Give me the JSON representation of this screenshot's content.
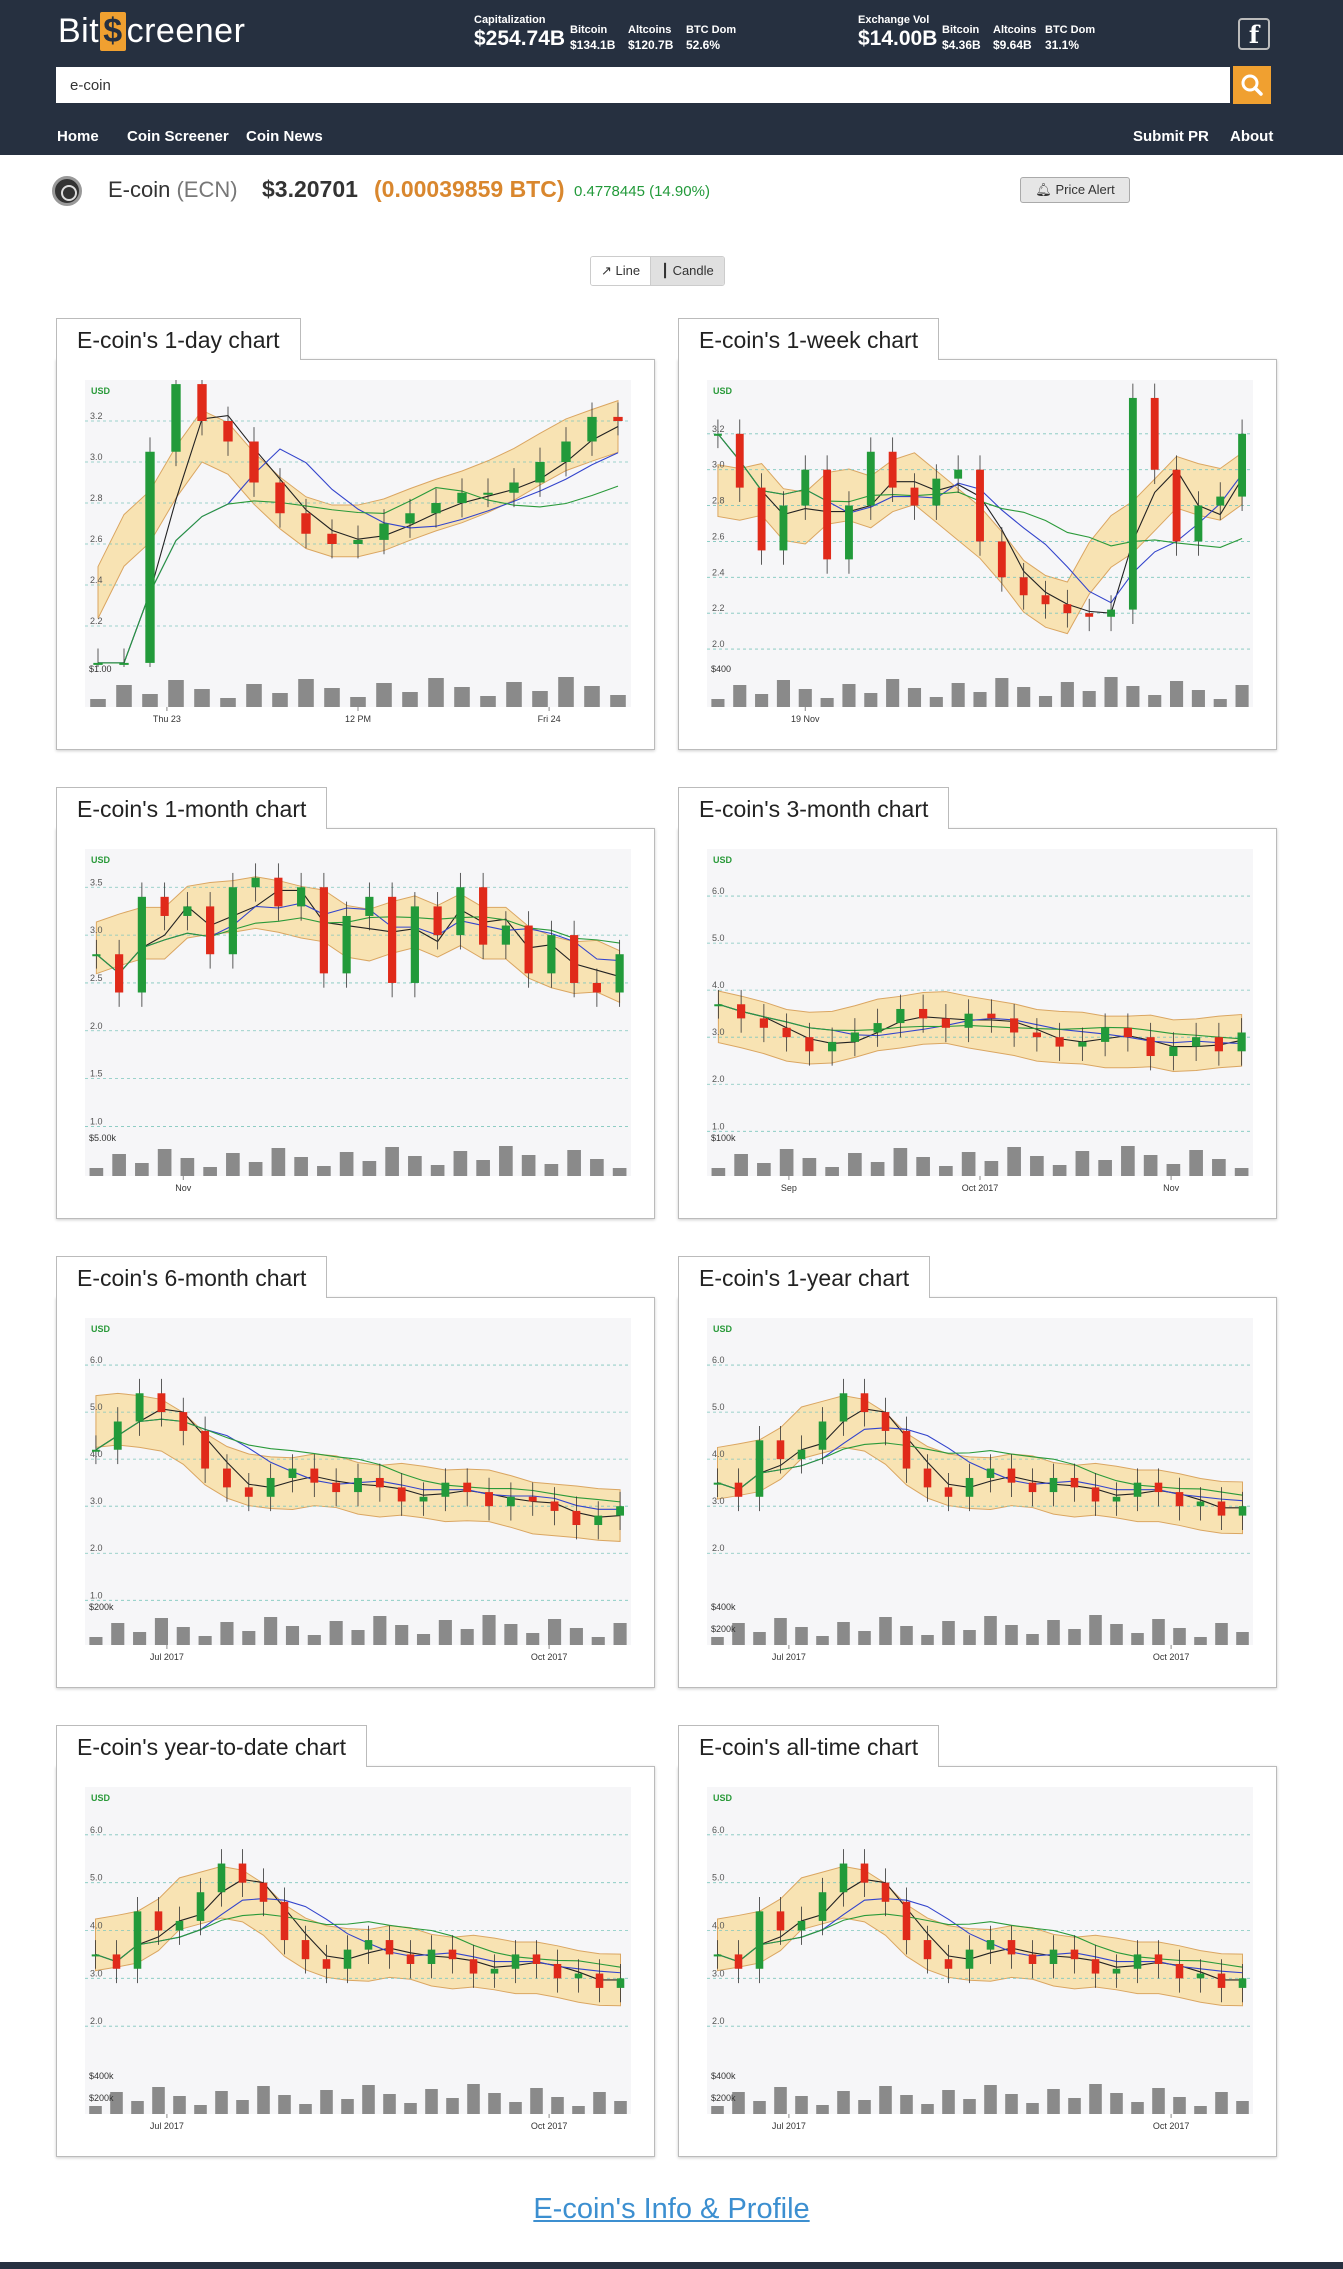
{
  "header": {
    "logo_left": "Bit",
    "logo_mark": "$",
    "logo_right": "creener",
    "capitalization_label": "Capitalization",
    "capitalization_value": "$254.74B",
    "cap_bitcoin_label": "Bitcoin",
    "cap_bitcoin_value": "$134.1B",
    "cap_altcoins_label": "Altcoins",
    "cap_altcoins_value": "$120.7B",
    "cap_btcdom_label": "BTC Dom",
    "cap_btcdom_value": "52.6%",
    "exchange_label": "Exchange Vol",
    "exchange_value": "$14.00B",
    "ex_bitcoin_label": "Bitcoin",
    "ex_bitcoin_value": "$4.36B",
    "ex_altcoins_label": "Altcoins",
    "ex_altcoins_value": "$9.64B",
    "ex_btcdom_label": "BTC Dom",
    "ex_btcdom_value": "31.1%",
    "facebook_glyph": "f"
  },
  "search": {
    "value": "e-coin"
  },
  "nav": {
    "home": "Home",
    "screener": "Coin Screener",
    "news": "Coin News",
    "submit": "Submit PR",
    "about": "About"
  },
  "coin": {
    "name": "E-coin",
    "symbol": "(ECN)",
    "price_usd": "$3.20701",
    "price_btc": "(0.00039859 BTC)",
    "change": "0.4778445 (14.90%)",
    "alert_label": "Price Alert"
  },
  "toggle": {
    "line": "Line",
    "candle": "Candle"
  },
  "colors": {
    "header_bg": "#263040",
    "accent": "#f0a030",
    "btc_price": "#d9872e",
    "up": "#229a3a",
    "down": "#e02a1a",
    "band": "#f9e2b0",
    "link": "#3c8fd0"
  },
  "chart_data": [
    {
      "type": "candlestick",
      "title": "E-coin's 1-day chart",
      "currency_label": "USD",
      "ylim": [
        2.0,
        3.4
      ],
      "y_ticks": [
        "2.2",
        "2.4",
        "2.6",
        "2.8",
        "3.0",
        "3.2"
      ],
      "x_ticks": [
        "Thu 23",
        "12 PM",
        "Fri 24"
      ],
      "volume_label": "$1.00",
      "close": [
        2.02,
        2.02,
        3.05,
        3.38,
        3.2,
        3.1,
        2.9,
        2.75,
        2.65,
        2.6,
        2.62,
        2.7,
        2.75,
        2.8,
        2.85,
        2.85,
        2.9,
        3.0,
        3.1,
        3.22,
        3.2
      ]
    },
    {
      "type": "candlestick",
      "title": "E-coin's 1-week chart",
      "currency_label": "USD",
      "ylim": [
        1.9,
        3.5
      ],
      "y_ticks": [
        "2.0",
        "2.2",
        "2.4",
        "2.6",
        "2.8",
        "3.0",
        "3.2"
      ],
      "x_ticks": [
        "19 Nov"
      ],
      "volume_label": "$400",
      "close": [
        3.2,
        2.9,
        2.55,
        2.8,
        3.0,
        2.5,
        2.8,
        3.1,
        2.9,
        2.8,
        2.95,
        3.0,
        2.6,
        2.4,
        2.3,
        2.25,
        2.2,
        2.18,
        2.22,
        3.4,
        3.0,
        2.6,
        2.8,
        2.85,
        3.2
      ]
    },
    {
      "type": "candlestick",
      "title": "E-coin's 1-month chart",
      "currency_label": "USD",
      "ylim": [
        0.9,
        3.9
      ],
      "y_ticks": [
        "1.0",
        "1.5",
        "2.0",
        "2.5",
        "3.0",
        "3.5"
      ],
      "x_ticks": [
        "Nov"
      ],
      "volume_label": "$5.00k",
      "close": [
        2.8,
        2.4,
        3.4,
        3.2,
        3.3,
        2.8,
        3.5,
        3.6,
        3.3,
        3.5,
        2.6,
        3.2,
        3.4,
        2.5,
        3.3,
        3.0,
        3.5,
        2.9,
        3.1,
        2.6,
        3.0,
        2.5,
        2.4,
        2.8
      ]
    },
    {
      "type": "candlestick",
      "title": "E-coin's 3-month chart",
      "currency_label": "USD",
      "ylim": [
        0.9,
        7.0
      ],
      "y_ticks": [
        "1.0",
        "2.0",
        "3.0",
        "4.0",
        "5.0",
        "6.0"
      ],
      "x_ticks": [
        "Sep",
        "Oct 2017",
        "Nov"
      ],
      "volume_label": "$100k",
      "close": [
        3.7,
        3.4,
        3.2,
        3.0,
        2.7,
        2.9,
        3.1,
        3.3,
        3.6,
        3.4,
        3.2,
        3.5,
        3.4,
        3.1,
        3.0,
        2.8,
        2.9,
        3.2,
        3.0,
        2.6,
        2.8,
        3.0,
        2.7,
        3.1
      ]
    },
    {
      "type": "candlestick",
      "title": "E-coin's 6-month chart",
      "currency_label": "USD",
      "ylim": [
        0.9,
        7.0
      ],
      "y_ticks": [
        "1.0",
        "2.0",
        "3.0",
        "4.0",
        "5.0",
        "6.0"
      ],
      "x_ticks": [
        "Jul 2017",
        "Oct 2017"
      ],
      "volume_label": "$200k",
      "close": [
        4.2,
        4.8,
        5.4,
        5.0,
        4.6,
        3.8,
        3.4,
        3.2,
        3.6,
        3.8,
        3.5,
        3.3,
        3.6,
        3.4,
        3.1,
        3.2,
        3.5,
        3.3,
        3.0,
        3.2,
        3.1,
        2.9,
        2.6,
        2.8,
        3.0
      ]
    },
    {
      "type": "candlestick",
      "title": "E-coin's 1-year chart",
      "currency_label": "USD",
      "ylim": [
        0.9,
        7.0
      ],
      "y_ticks": [
        "2.0",
        "3.0",
        "4.0",
        "5.0",
        "6.0"
      ],
      "x_ticks": [
        "Jul 2017",
        "Oct 2017"
      ],
      "volume_label": "$400k",
      "volume_label_2": "$200k",
      "close": [
        3.5,
        3.2,
        4.4,
        4.0,
        4.2,
        4.8,
        5.4,
        5.0,
        4.6,
        3.8,
        3.4,
        3.2,
        3.6,
        3.8,
        3.5,
        3.3,
        3.6,
        3.4,
        3.1,
        3.2,
        3.5,
        3.3,
        3.0,
        3.1,
        2.8,
        3.0
      ]
    },
    {
      "type": "candlestick",
      "title": "E-coin's year-to-date chart",
      "currency_label": "USD",
      "ylim": [
        1.0,
        7.0
      ],
      "y_ticks": [
        "2.0",
        "3.0",
        "4.0",
        "5.0",
        "6.0"
      ],
      "x_ticks": [
        "Jul 2017",
        "Oct 2017"
      ],
      "volume_label": "$400k",
      "volume_label_2": "$200k",
      "close": [
        3.5,
        3.2,
        4.4,
        4.0,
        4.2,
        4.8,
        5.4,
        5.0,
        4.6,
        3.8,
        3.4,
        3.2,
        3.6,
        3.8,
        3.5,
        3.3,
        3.6,
        3.4,
        3.1,
        3.2,
        3.5,
        3.3,
        3.0,
        3.1,
        2.8,
        3.0
      ]
    },
    {
      "type": "candlestick",
      "title": "E-coin's all-time chart",
      "currency_label": "USD",
      "ylim": [
        1.0,
        7.0
      ],
      "y_ticks": [
        "2.0",
        "3.0",
        "4.0",
        "5.0",
        "6.0"
      ],
      "x_ticks": [
        "Jul 2017",
        "Oct 2017"
      ],
      "volume_label": "$400k",
      "volume_label_2": "$200k",
      "close": [
        3.5,
        3.2,
        4.4,
        4.0,
        4.2,
        4.8,
        5.4,
        5.0,
        4.6,
        3.8,
        3.4,
        3.2,
        3.6,
        3.8,
        3.5,
        3.3,
        3.6,
        3.4,
        3.1,
        3.2,
        3.5,
        3.3,
        3.0,
        3.1,
        2.8,
        3.0
      ]
    }
  ],
  "footer": {
    "link": "E-coin's Info & Profile"
  }
}
